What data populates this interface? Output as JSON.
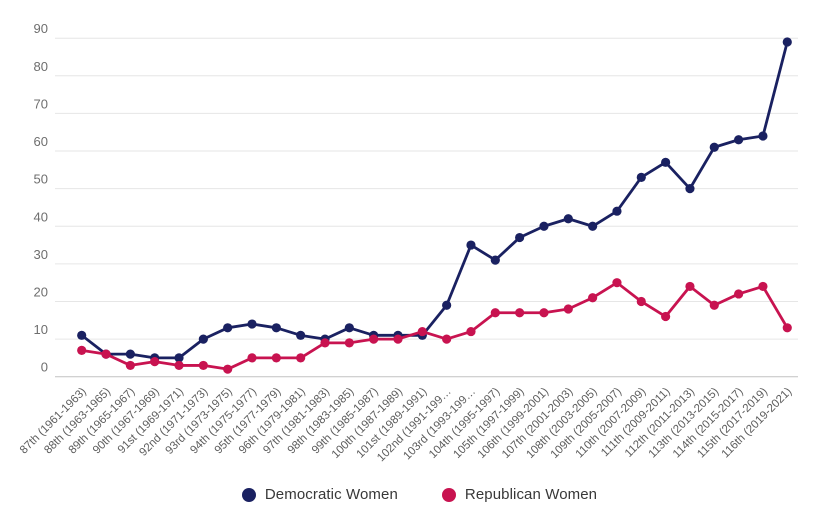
{
  "chart_data": {
    "type": "line",
    "title": "",
    "xlabel": "",
    "ylabel": "",
    "ylim": [
      0,
      90
    ],
    "yticks": [
      0,
      10,
      20,
      30,
      40,
      50,
      60,
      70,
      80,
      90
    ],
    "grid": true,
    "legend_position": "bottom",
    "x_label_rotation": -45,
    "categories": [
      "87th (1961-1963)",
      "88th (1963-1965)",
      "89th (1965-1967)",
      "90th (1967-1969)",
      "91st (1969-1971)",
      "92nd (1971-1973)",
      "93rd (1973-1975)",
      "94th (1975-1977)",
      "95th (1977-1979)",
      "96th (1979-1981)",
      "97th (1981-1983)",
      "98th (1983-1985)",
      "99th (1985-1987)",
      "100th (1987-1989)",
      "101st (1989-1991)",
      "102nd (1991-199…",
      "103rd (1993-199…",
      "104th (1995-1997)",
      "105th (1997-1999)",
      "106th (1999-2001)",
      "107th (2001-2003)",
      "108th (2003-2005)",
      "109th (2005-2007)",
      "110th (2007-2009)",
      "111th (2009-2011)",
      "112th (2011-2013)",
      "113th (2013-2015)",
      "114th (2015-2017)",
      "115th (2017-2019)",
      "116th (2019-2021)"
    ],
    "series": [
      {
        "name": "Democratic Women",
        "color": "#1A2161",
        "values": [
          11,
          6,
          6,
          5,
          5,
          10,
          13,
          14,
          13,
          11,
          10,
          13,
          11,
          11,
          11,
          19,
          35,
          31,
          37,
          40,
          42,
          40,
          44,
          53,
          57,
          50,
          61,
          63,
          64,
          89
        ]
      },
      {
        "name": "Republican Women",
        "color": "#C81350",
        "values": [
          7,
          6,
          3,
          4,
          3,
          3,
          2,
          5,
          5,
          5,
          9,
          9,
          10,
          10,
          12,
          10,
          12,
          17,
          17,
          17,
          18,
          21,
          25,
          20,
          16,
          24,
          19,
          22,
          24,
          13
        ]
      }
    ]
  },
  "style_colors": {
    "gridline": "#e6e6e6",
    "axis_line": "#c2c2c2",
    "y_tick_label": "#6e6e6e",
    "x_tick_label": "#5c5c5c",
    "legend_text": "#383838",
    "background": "#ffffff"
  }
}
